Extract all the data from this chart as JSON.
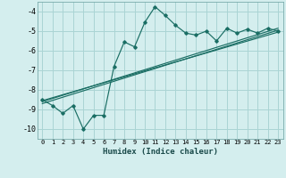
{
  "xlabel": "Humidex (Indice chaleur)",
  "ylabel": "",
  "xlim": [
    -0.5,
    23.5
  ],
  "ylim": [
    -10.5,
    -3.5
  ],
  "yticks": [
    -10,
    -9,
    -8,
    -7,
    -6,
    -5,
    -4
  ],
  "xticks": [
    0,
    1,
    2,
    3,
    4,
    5,
    6,
    7,
    8,
    9,
    10,
    11,
    12,
    13,
    14,
    15,
    16,
    17,
    18,
    19,
    20,
    21,
    22,
    23
  ],
  "bg_color": "#d4eeee",
  "grid_color": "#aad4d4",
  "line_color": "#1a6e64",
  "curve1_x": [
    0,
    1,
    2,
    3,
    4,
    5,
    6,
    7,
    8,
    9,
    10,
    11,
    12,
    13,
    14,
    15,
    16,
    17,
    18,
    19,
    20,
    21,
    22,
    23
  ],
  "curve1_y": [
    -8.5,
    -8.8,
    -9.2,
    -8.8,
    -10.0,
    -9.3,
    -9.3,
    -6.8,
    -5.55,
    -5.8,
    -4.55,
    -3.75,
    -4.2,
    -4.7,
    -5.1,
    -5.2,
    -5.0,
    -5.5,
    -4.85,
    -5.1,
    -4.9,
    -5.1,
    -4.85,
    -5.0
  ],
  "line1_x": [
    0,
    23
  ],
  "line1_y": [
    -8.6,
    -4.85
  ],
  "line2_x": [
    0,
    23
  ],
  "line2_y": [
    -8.7,
    -4.95
  ],
  "line3_x": [
    0,
    23
  ],
  "line3_y": [
    -8.55,
    -5.05
  ]
}
